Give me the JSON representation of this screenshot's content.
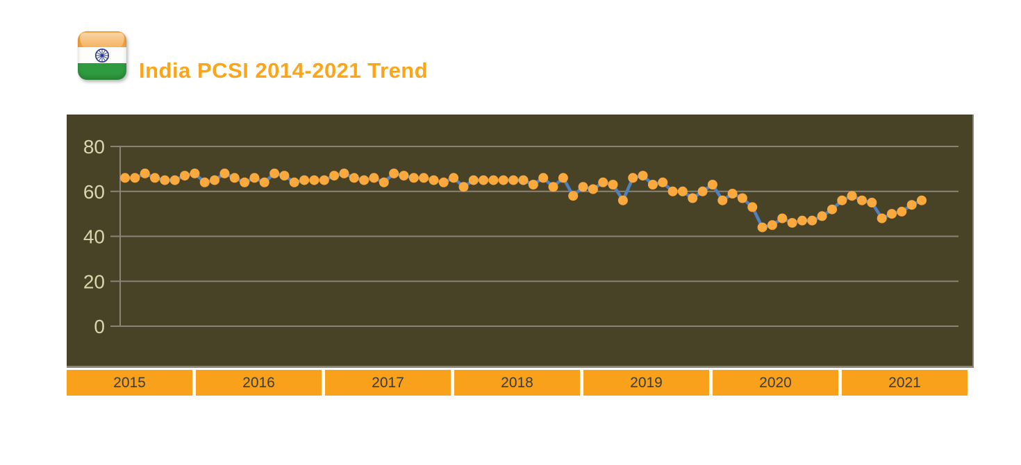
{
  "header": {
    "title": "India PCSI 2014-2021 Trend",
    "flag_icon": "india-flag-icon"
  },
  "colors": {
    "title_text": "#FCA519",
    "chart_background": "#484327",
    "gridline": "#8B8378",
    "y_tick_label": "#DCD5AC",
    "data_point": "#FBA93C",
    "trend_line": "#4E81BD",
    "year_box_background": "#F9A11B",
    "year_box_text": "#3C3C3C",
    "flag_saffron": "#F2A23C",
    "flag_green": "#2F9B40",
    "flag_chakra_navy": "#283593"
  },
  "chart_data": {
    "type": "line",
    "title": "India PCSI 2014-2021 Trend",
    "xlabel": "",
    "ylabel": "",
    "period": "monthly",
    "grid": "horizontal",
    "legend_position": "none",
    "y_ticks": [
      80,
      60,
      40,
      20,
      0
    ],
    "ylim": [
      0,
      92
    ],
    "x_year_labels": [
      "2015",
      "2016",
      "2017",
      "2018",
      "2019",
      "2020",
      "2021"
    ],
    "series": [
      {
        "name": "India PCSI",
        "marker": "circle",
        "values": [
          66,
          66,
          68,
          66,
          65,
          65,
          67,
          68,
          64,
          65,
          68,
          66,
          64,
          66,
          64,
          68,
          67,
          64,
          65,
          65,
          65,
          67,
          68,
          66,
          65,
          66,
          64,
          68,
          67,
          66,
          66,
          65,
          64,
          66,
          62,
          65,
          65,
          65,
          65,
          65,
          65,
          63,
          66,
          62,
          66,
          58,
          62,
          61,
          64,
          63,
          56,
          66,
          67,
          63,
          64,
          60,
          60,
          57,
          60,
          63,
          56,
          59,
          57,
          53,
          44,
          45,
          48,
          46,
          47,
          47,
          49,
          52,
          56,
          58,
          56,
          55,
          48,
          50,
          51,
          54,
          56
        ]
      }
    ]
  }
}
